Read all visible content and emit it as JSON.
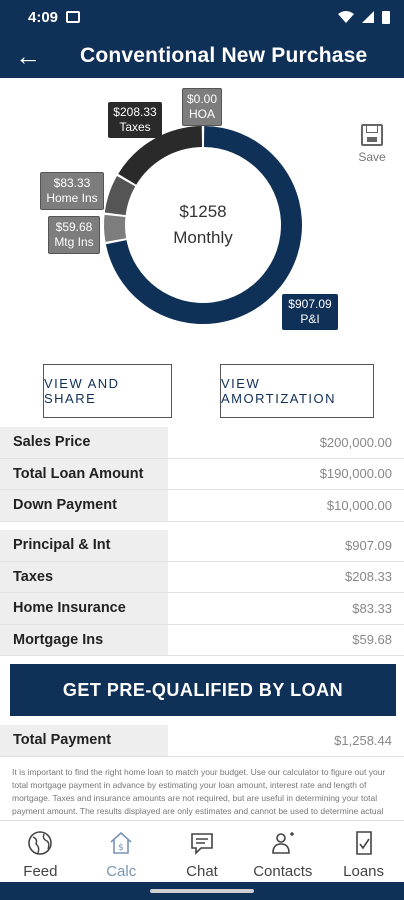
{
  "status_bar": {
    "time": "4:09"
  },
  "header": {
    "title": "Conventional New Purchase",
    "back_icon": "←"
  },
  "chart_data": {
    "type": "pie",
    "center_value": "$1258",
    "center_label": "Monthly",
    "slices": [
      {
        "label": "P&I",
        "amount_text": "$907.09",
        "value": 907.09,
        "color": "#0f3057"
      },
      {
        "label": "Mtg Ins",
        "amount_text": "$59.68",
        "value": 59.68,
        "color": "#7d7d7d"
      },
      {
        "label": "Home Ins",
        "amount_text": "$83.33",
        "value": 83.33,
        "color": "#555555"
      },
      {
        "label": "Taxes",
        "amount_text": "$208.33",
        "value": 208.33,
        "color": "#2a2a2a"
      },
      {
        "label": "HOA",
        "amount_text": "$0.00",
        "value": 0,
        "color": "#7d7d7d"
      }
    ]
  },
  "save": {
    "label": "Save",
    "icon": "save-icon"
  },
  "buttons": {
    "view_share": "VIEW AND SHARE",
    "view_amortization": "VIEW AMORTIZATION"
  },
  "loan_rows": [
    {
      "label": "Sales Price",
      "value": "$200,000.00"
    },
    {
      "label": "Total Loan Amount",
      "value": "$190,000.00"
    },
    {
      "label": "Down Payment",
      "value": "$10,000.00"
    }
  ],
  "payment_rows": [
    {
      "label": "Principal & Int",
      "value": "$907.09"
    },
    {
      "label": "Taxes",
      "value": "$208.33"
    },
    {
      "label": "Home Insurance",
      "value": "$83.33"
    },
    {
      "label": "Mortgage Ins",
      "value": "$59.68"
    }
  ],
  "cta": {
    "label": "GET PRE-QUALIFIED BY LOAN"
  },
  "total": {
    "label": "Total Payment",
    "value": "$1,258.44"
  },
  "disclaimer": "It is important to find the right home loan to match your budget. Use our calculator to figure out your total mortgage payment in advance by estimating your loan amount, interest rate and length of mortgage. Taxes and insurance amounts are not required, but are useful in determining your total payment amount. The results displayed are only estimates and cannot be used to determine actual",
  "nav": [
    {
      "label": "Feed",
      "icon": "globe-icon"
    },
    {
      "label": "Calc",
      "icon": "calculator-home-icon"
    },
    {
      "label": "Chat",
      "icon": "chat-bubble-icon"
    },
    {
      "label": "Contacts",
      "icon": "contacts-icon"
    },
    {
      "label": "Loans",
      "icon": "document-check-icon"
    }
  ]
}
